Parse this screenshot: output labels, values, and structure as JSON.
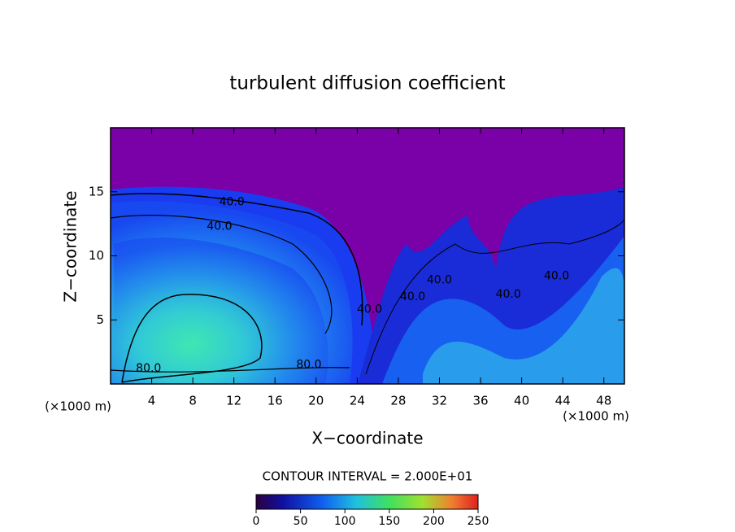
{
  "chart_data": {
    "type": "contour",
    "title": "turbulent diffusion coefficient",
    "x_label": "X−coordinate",
    "y_label": "Z−coordinate",
    "unit_labels": [
      "(×1000 m)",
      "(×1000 m)"
    ],
    "xlim": [
      0,
      50
    ],
    "xticks": [
      4,
      8,
      12,
      16,
      20,
      24,
      28,
      32,
      36,
      40,
      44,
      48
    ],
    "ylim": [
      0,
      20
    ],
    "yticks": [
      5,
      10,
      15
    ],
    "contour_interval_text": "CONTOUR INTERVAL = 2.000E+01",
    "contour_labels": [
      {
        "value": 40,
        "label": "40.0",
        "x": 11.8,
        "y": 14.2
      },
      {
        "value": 40,
        "label": "40.0",
        "x": 10.6,
        "y": 12.3
      },
      {
        "value": 80,
        "label": "80.0",
        "x": 3.7,
        "y": 1.2
      },
      {
        "value": 80,
        "label": "80.0",
        "x": 19.3,
        "y": 1.5
      },
      {
        "value": 40,
        "label": "40.0",
        "x": 25.2,
        "y": 5.8
      },
      {
        "value": 40,
        "label": "40.0",
        "x": 29.4,
        "y": 6.8
      },
      {
        "value": 40,
        "label": "40.0",
        "x": 32.0,
        "y": 8.1
      },
      {
        "value": 40,
        "label": "40.0",
        "x": 38.7,
        "y": 7.0
      },
      {
        "value": 40,
        "label": "40.0",
        "x": 43.4,
        "y": 8.4
      }
    ],
    "colorbar": {
      "lim": [
        0,
        250
      ],
      "ticks": [
        0,
        50,
        100,
        150,
        200,
        250
      ]
    }
  }
}
